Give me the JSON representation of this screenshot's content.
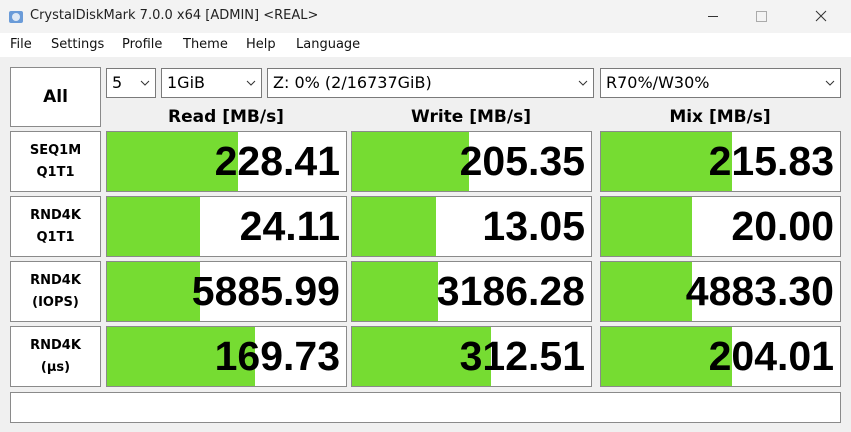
{
  "window": {
    "title": "CrystalDiskMark 7.0.0 x64 [ADMIN] <REAL>"
  },
  "menu": [
    "File",
    "Settings",
    "Profile",
    "Theme",
    "Help",
    "Language"
  ],
  "controls": {
    "all_button": "All",
    "count": "5",
    "size": "1GiB",
    "drive": "Z: 0% (2/16737GiB)",
    "mix": "R70%/W30%"
  },
  "columns": [
    "Read [MB/s]",
    "Write [MB/s]",
    "Mix [MB/s]"
  ],
  "rows": [
    {
      "label": [
        "SEQ1M",
        "Q1T1"
      ],
      "values": [
        "228.41",
        "205.35",
        "215.83"
      ]
    },
    {
      "label": [
        "RND4K",
        "Q1T1"
      ],
      "values": [
        "24.11",
        "13.05",
        "20.00"
      ]
    },
    {
      "label": [
        "RND4K",
        "(IOPS)"
      ],
      "values": [
        "5885.99",
        "3186.28",
        "4883.30"
      ]
    },
    {
      "label": [
        "RND4K",
        "(µs)"
      ],
      "values": [
        "169.73",
        "312.51",
        "204.01"
      ]
    }
  ]
}
